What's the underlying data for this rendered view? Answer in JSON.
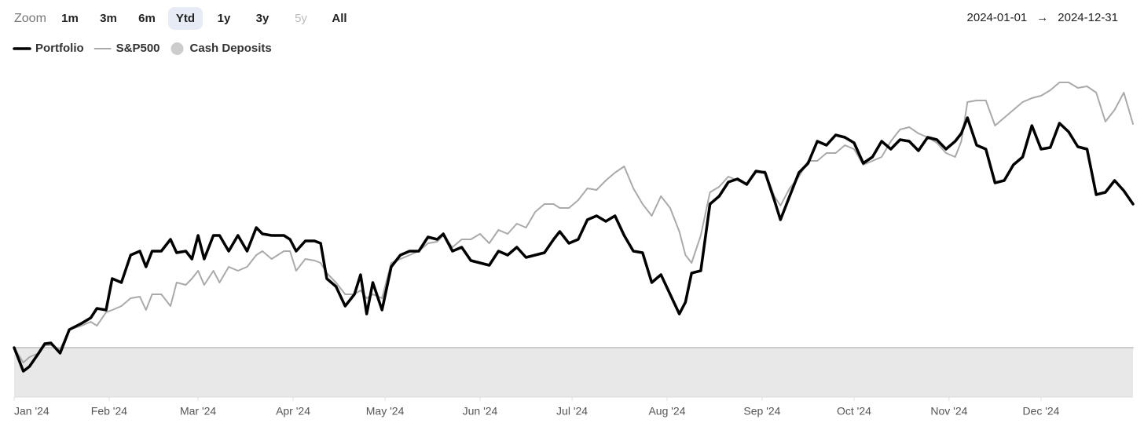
{
  "toolbar": {
    "zoom_label": "Zoom",
    "options": [
      "1m",
      "3m",
      "6m",
      "Ytd",
      "1y",
      "3y",
      "5y",
      "All"
    ],
    "selected": "Ytd",
    "disabled": [
      "5y"
    ],
    "range_from": "2024-01-01",
    "range_arrow": "→",
    "range_to": "2024-12-31"
  },
  "chart_data": {
    "type": "line",
    "xlim": [
      0,
      365
    ],
    "xticks": [
      {
        "value": 0,
        "label": "Jan '24"
      },
      {
        "value": 31,
        "label": "Feb '24"
      },
      {
        "value": 60,
        "label": "Mar '24"
      },
      {
        "value": 91,
        "label": "Apr '24"
      },
      {
        "value": 121,
        "label": "May '24"
      },
      {
        "value": 152,
        "label": "Jun '24"
      },
      {
        "value": 182,
        "label": "Jul '24"
      },
      {
        "value": 213,
        "label": "Aug '24"
      },
      {
        "value": 244,
        "label": "Sep '24"
      },
      {
        "value": 274,
        "label": "Oct '24"
      },
      {
        "value": 305,
        "label": "Nov '24"
      },
      {
        "value": 335,
        "label": "Dec '24"
      }
    ],
    "ylim": [
      -63,
      378
    ],
    "x": [
      0,
      3,
      5,
      8,
      10,
      12,
      15,
      18,
      22,
      25,
      27,
      30,
      32,
      35,
      38,
      41,
      43,
      45,
      48,
      51,
      53,
      56,
      58,
      60,
      62,
      65,
      67,
      70,
      73,
      76,
      79,
      81,
      84,
      88,
      90,
      92,
      95,
      98,
      100,
      102,
      105,
      108,
      111,
      113,
      115,
      117,
      120,
      123,
      126,
      129,
      132,
      135,
      138,
      140,
      143,
      146,
      149,
      152,
      155,
      158,
      161,
      164,
      167,
      170,
      173,
      176,
      178,
      181,
      184,
      187,
      190,
      193,
      196,
      199,
      202,
      205,
      208,
      211,
      214,
      217,
      219,
      221,
      224,
      227,
      230,
      233,
      236,
      239,
      242,
      245,
      248,
      250,
      253,
      256,
      259,
      262,
      265,
      268,
      271,
      274,
      277,
      280,
      283,
      286,
      289,
      292,
      295,
      298,
      301,
      304,
      307,
      309,
      311,
      314,
      317,
      320,
      323,
      326,
      329,
      332,
      335,
      338,
      341,
      344,
      347,
      350,
      353,
      356,
      359,
      362,
      365
    ],
    "series": [
      {
        "name": "Portfolio",
        "color": "#000000",
        "marker": "line",
        "width": 3.5,
        "values": [
          0,
          -30,
          -24,
          -7,
          5,
          6,
          -7,
          23,
          31,
          38,
          50,
          48,
          88,
          83,
          118,
          123,
          103,
          123,
          123,
          138,
          121,
          123,
          113,
          143,
          113,
          143,
          143,
          123,
          143,
          123,
          153,
          145,
          143,
          143,
          138,
          123,
          136,
          136,
          133,
          88,
          78,
          53,
          68,
          93,
          43,
          83,
          48,
          103,
          118,
          123,
          123,
          141,
          138,
          145,
          123,
          128,
          111,
          108,
          105,
          123,
          118,
          128,
          115,
          118,
          121,
          138,
          148,
          133,
          138,
          163,
          168,
          161,
          168,
          143,
          123,
          121,
          83,
          93,
          68,
          43,
          58,
          95,
          98,
          183,
          193,
          211,
          215,
          208,
          225,
          223,
          188,
          163,
          193,
          223,
          235,
          263,
          258,
          271,
          268,
          261,
          235,
          243,
          263,
          253,
          265,
          263,
          251,
          268,
          265,
          253,
          263,
          273,
          293,
          258,
          253,
          210,
          213,
          233,
          243,
          283,
          253,
          255,
          286,
          275,
          256,
          253,
          195,
          198,
          213,
          200,
          183
        ]
      },
      {
        "name": "S&P500",
        "color": "#aaaaaa",
        "marker": "line",
        "width": 2,
        "values": [
          0,
          -19,
          -12,
          -7,
          3,
          3,
          -2,
          23,
          28,
          33,
          28,
          45,
          48,
          53,
          63,
          65,
          48,
          68,
          68,
          53,
          83,
          80,
          88,
          98,
          80,
          98,
          83,
          103,
          98,
          103,
          118,
          123,
          113,
          123,
          123,
          98,
          113,
          111,
          108,
          95,
          83,
          68,
          68,
          73,
          63,
          68,
          63,
          108,
          113,
          118,
          123,
          133,
          135,
          143,
          128,
          138,
          138,
          145,
          133,
          150,
          145,
          158,
          153,
          173,
          183,
          183,
          178,
          178,
          188,
          203,
          201,
          213,
          223,
          231,
          203,
          183,
          168,
          193,
          178,
          148,
          118,
          108,
          143,
          198,
          205,
          218,
          213,
          208,
          223,
          225,
          193,
          181,
          203,
          218,
          238,
          238,
          248,
          248,
          258,
          253,
          233,
          238,
          243,
          263,
          278,
          281,
          273,
          268,
          261,
          248,
          243,
          263,
          313,
          315,
          315,
          283,
          293,
          303,
          313,
          318,
          321,
          328,
          338,
          338,
          331,
          333,
          325,
          288,
          303,
          325,
          285
        ]
      },
      {
        "name": "Cash Deposits",
        "color": "#cccccc",
        "marker": "circle",
        "area": true,
        "width": 2,
        "x": [
          0,
          365
        ],
        "values": [
          0,
          0
        ]
      }
    ]
  }
}
